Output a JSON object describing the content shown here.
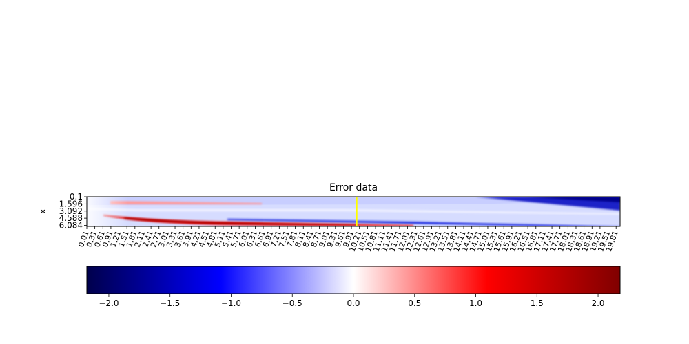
{
  "chart_data": {
    "type": "heatmap",
    "title": "Error data",
    "xlabel": "",
    "ylabel": "x",
    "x_ticks": [
      "0.01",
      "0.31",
      "0.61",
      "0.91",
      "1.21",
      "1.51",
      "1.81",
      "2.11",
      "2.41",
      "2.71",
      "3.01",
      "3.31",
      "3.61",
      "3.91",
      "4.21",
      "4.51",
      "4.81",
      "5.11",
      "5.41",
      "5.71",
      "6.01",
      "6.31",
      "6.61",
      "6.91",
      "7.21",
      "7.51",
      "7.81",
      "8.11",
      "8.41",
      "8.71",
      "9.01",
      "9.31",
      "9.61",
      "9.91",
      "10.21",
      "10.51",
      "10.81",
      "11.11",
      "11.41",
      "11.71",
      "12.01",
      "12.31",
      "12.61",
      "12.91",
      "13.21",
      "13.51",
      "13.81",
      "14.11",
      "14.41",
      "14.71",
      "15.01",
      "15.31",
      "15.61",
      "15.91",
      "16.21",
      "16.51",
      "16.81",
      "17.11",
      "17.41",
      "17.71",
      "18.01",
      "18.31",
      "18.61",
      "18.91",
      "19.21",
      "19.51",
      "19.81"
    ],
    "y_ticks": [
      "0.1",
      "1.596",
      "3.092",
      "4.588",
      "6.084"
    ],
    "x_range": [
      0.01,
      19.96
    ],
    "y_range": [
      0.1,
      6.3
    ],
    "y_inverted": true,
    "marker_line": {
      "x": 10.1,
      "color": "#ffff00"
    },
    "colorbar": {
      "orientation": "horizontal",
      "placement": "bottom",
      "colormap": "seismic",
      "vmin": -2.18,
      "vmax": 2.18,
      "ticks": [
        "−2.0",
        "−1.5",
        "−1.0",
        "−0.5",
        "0.0",
        "0.5",
        "1.0",
        "1.5",
        "2.0"
      ],
      "tick_values": [
        -2.0,
        -1.5,
        -1.0,
        -0.5,
        0.0,
        0.5,
        1.0,
        1.5,
        2.0
      ]
    },
    "grid": false
  }
}
